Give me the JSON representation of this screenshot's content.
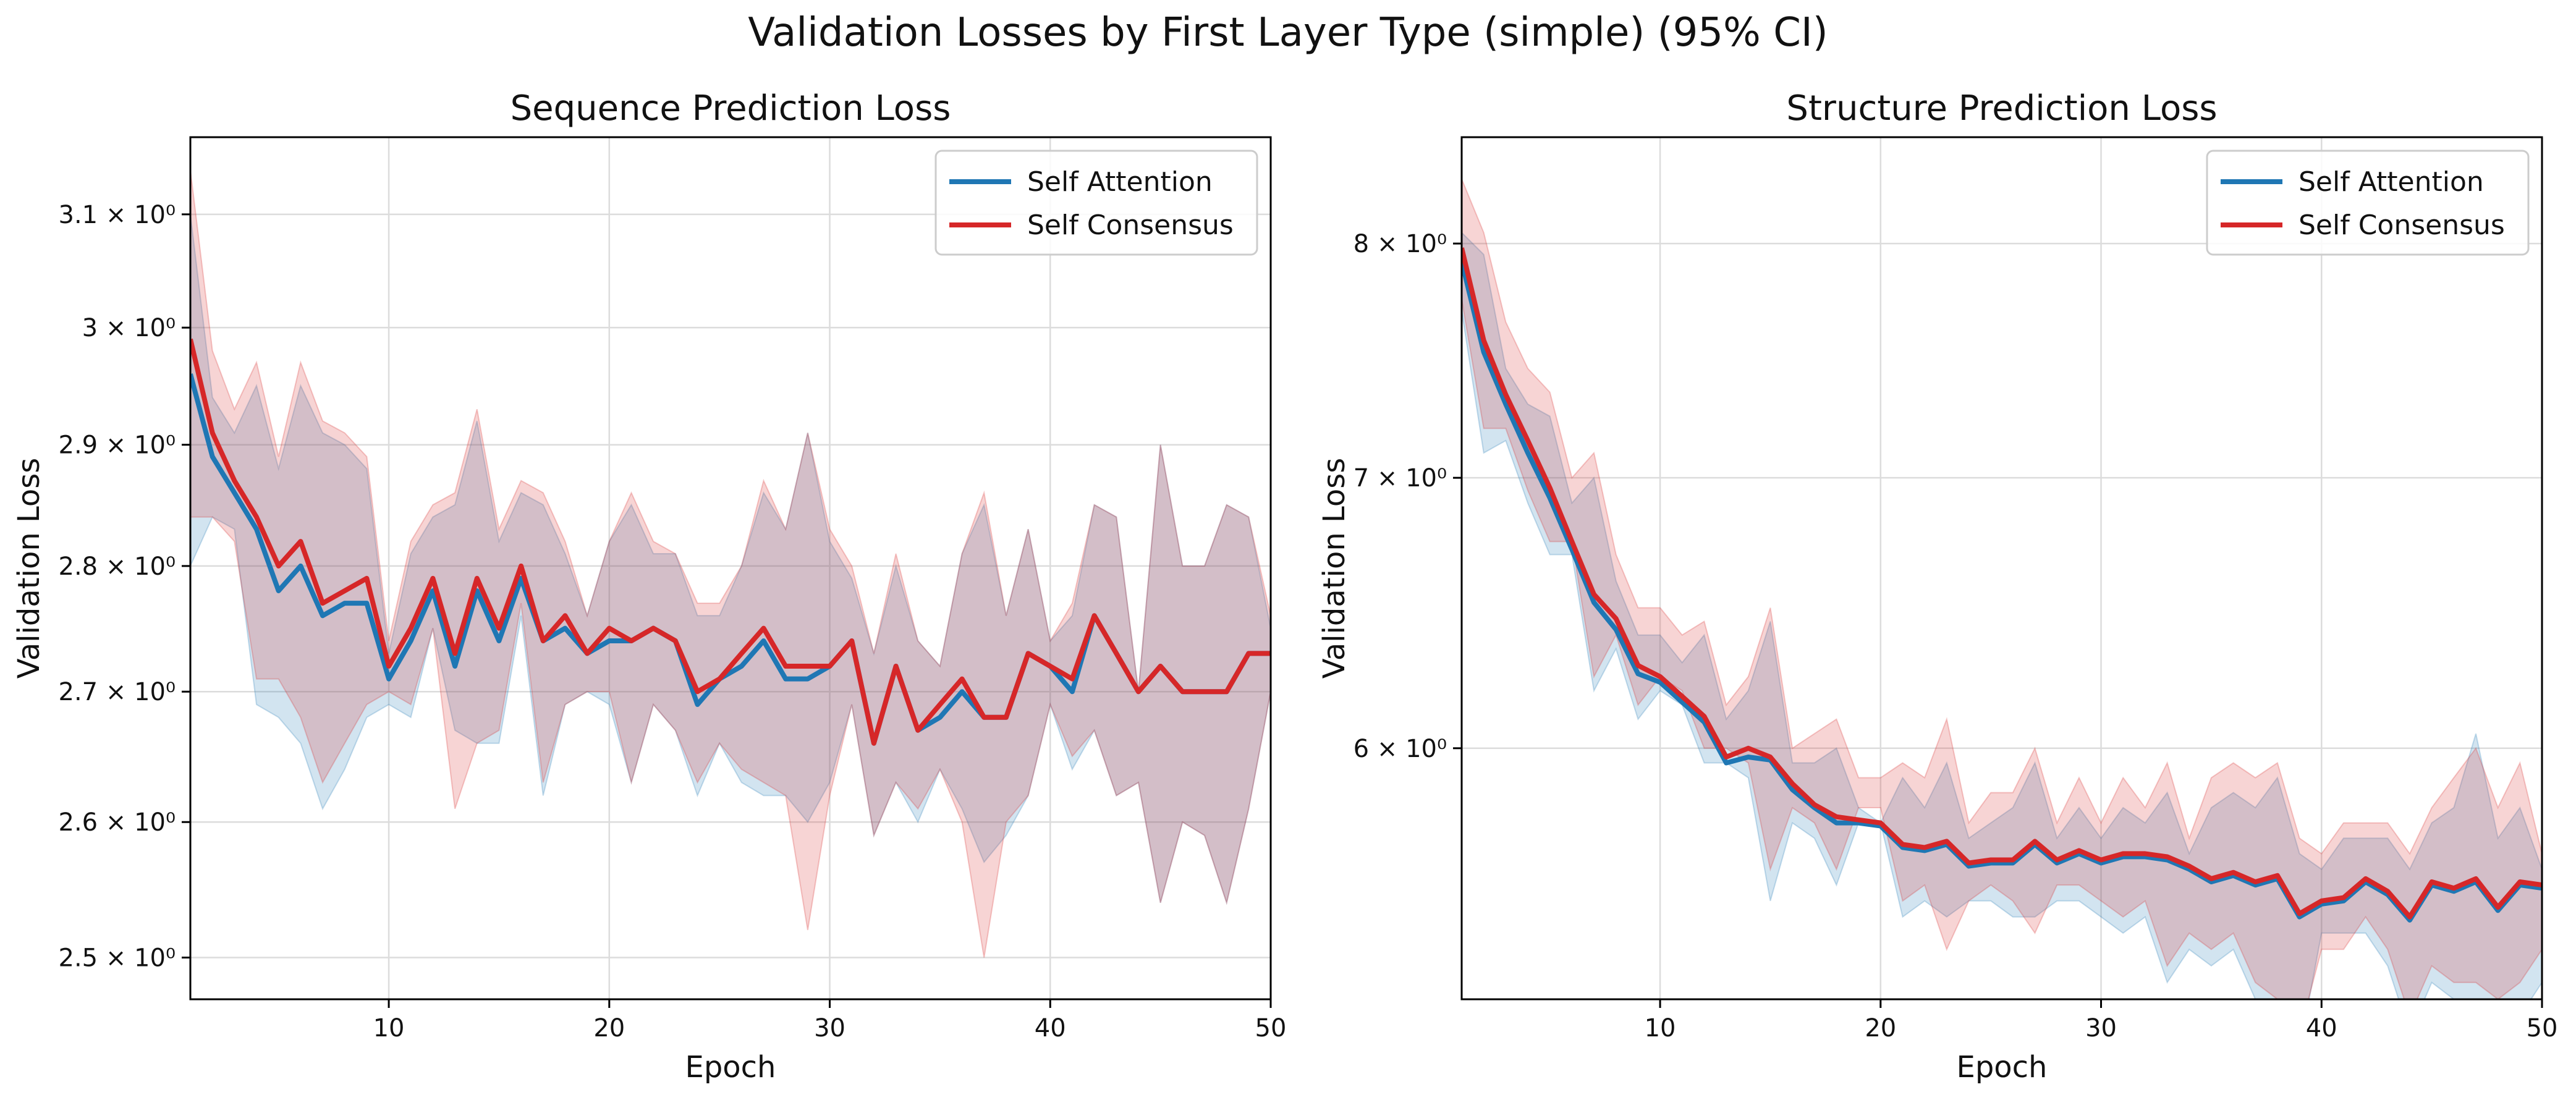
{
  "suptitle": "Validation Losses by First Layer Type (simple) (95% CI)",
  "colors": {
    "self_attention": "#1f77b4",
    "self_consensus": "#d62728",
    "grid": "#dcdcdc",
    "axes": "#000000"
  },
  "chart_data": [
    {
      "type": "line",
      "title": "Sequence Prediction Loss",
      "xlabel": "Epoch",
      "ylabel": "Validation Loss",
      "yscale": "log",
      "xlim": [
        1,
        50
      ],
      "ylim": [
        2.47,
        3.17
      ],
      "xticks": [
        10,
        20,
        30,
        40,
        50
      ],
      "yticks": [
        2.5,
        2.6,
        2.7,
        2.8,
        2.9,
        3.0,
        3.1
      ],
      "ytick_labels": [
        "2.5 × 10⁰",
        "2.6 × 10⁰",
        "2.7 × 10⁰",
        "2.8 × 10⁰",
        "2.9 × 10⁰",
        "3 × 10⁰",
        "3.1 × 10⁰"
      ],
      "grid": true,
      "legend": "top-right",
      "x": [
        1,
        2,
        3,
        4,
        5,
        6,
        7,
        8,
        9,
        10,
        11,
        12,
        13,
        14,
        15,
        16,
        17,
        18,
        19,
        20,
        21,
        22,
        23,
        24,
        25,
        26,
        27,
        28,
        29,
        30,
        31,
        32,
        33,
        34,
        35,
        36,
        37,
        38,
        39,
        40,
        41,
        42,
        43,
        44,
        45,
        46,
        47,
        48,
        49,
        50
      ],
      "series": [
        {
          "name": "Self Attention",
          "color_key": "self_attention",
          "values": [
            2.96,
            2.89,
            2.86,
            2.83,
            2.78,
            2.8,
            2.76,
            2.77,
            2.77,
            2.71,
            2.74,
            2.78,
            2.72,
            2.78,
            2.74,
            2.79,
            2.74,
            2.75,
            2.73,
            2.74,
            2.74,
            2.75,
            2.74,
            2.69,
            2.71,
            2.72,
            2.74,
            2.71,
            2.71,
            2.72,
            2.74,
            2.66,
            2.72,
            2.67,
            2.68,
            2.7,
            2.68,
            2.68,
            2.73,
            2.72,
            2.7,
            2.76,
            2.73,
            2.7,
            2.72,
            2.7,
            2.7,
            2.7,
            2.73,
            2.73
          ],
          "ci_lower": [
            2.8,
            2.84,
            2.83,
            2.69,
            2.68,
            2.66,
            2.61,
            2.64,
            2.68,
            2.69,
            2.68,
            2.75,
            2.67,
            2.66,
            2.66,
            2.76,
            2.62,
            2.69,
            2.7,
            2.69,
            2.63,
            2.69,
            2.67,
            2.62,
            2.66,
            2.63,
            2.62,
            2.62,
            2.6,
            2.63,
            2.69,
            2.59,
            2.63,
            2.6,
            2.64,
            2.61,
            2.57,
            2.59,
            2.62,
            2.69,
            2.64,
            2.67,
            2.62,
            2.63,
            2.54,
            2.6,
            2.59,
            2.54,
            2.61,
            2.7
          ],
          "ci_upper": [
            3.1,
            2.94,
            2.91,
            2.95,
            2.88,
            2.95,
            2.91,
            2.9,
            2.88,
            2.73,
            2.81,
            2.84,
            2.85,
            2.92,
            2.82,
            2.86,
            2.85,
            2.81,
            2.76,
            2.82,
            2.85,
            2.81,
            2.81,
            2.76,
            2.76,
            2.8,
            2.86,
            2.83,
            2.91,
            2.82,
            2.79,
            2.73,
            2.8,
            2.74,
            2.72,
            2.81,
            2.85,
            2.76,
            2.83,
            2.74,
            2.76,
            2.85,
            2.84,
            2.7,
            2.9,
            2.8,
            2.8,
            2.85,
            2.84,
            2.75
          ]
        },
        {
          "name": "Self Consensus",
          "color_key": "self_consensus",
          "values": [
            2.99,
            2.91,
            2.87,
            2.84,
            2.8,
            2.82,
            2.77,
            2.78,
            2.79,
            2.72,
            2.75,
            2.79,
            2.73,
            2.79,
            2.75,
            2.8,
            2.74,
            2.76,
            2.73,
            2.75,
            2.74,
            2.75,
            2.74,
            2.7,
            2.71,
            2.73,
            2.75,
            2.72,
            2.72,
            2.72,
            2.74,
            2.66,
            2.72,
            2.67,
            2.69,
            2.71,
            2.68,
            2.68,
            2.73,
            2.72,
            2.71,
            2.76,
            2.73,
            2.7,
            2.72,
            2.7,
            2.7,
            2.7,
            2.73,
            2.73
          ],
          "ci_lower": [
            2.84,
            2.84,
            2.82,
            2.71,
            2.71,
            2.68,
            2.63,
            2.66,
            2.69,
            2.7,
            2.69,
            2.75,
            2.61,
            2.66,
            2.67,
            2.77,
            2.63,
            2.69,
            2.7,
            2.7,
            2.63,
            2.69,
            2.67,
            2.63,
            2.66,
            2.64,
            2.63,
            2.62,
            2.52,
            2.62,
            2.69,
            2.59,
            2.63,
            2.61,
            2.64,
            2.6,
            2.5,
            2.6,
            2.62,
            2.69,
            2.65,
            2.67,
            2.62,
            2.63,
            2.54,
            2.6,
            2.59,
            2.54,
            2.61,
            2.7
          ],
          "ci_upper": [
            3.14,
            2.98,
            2.93,
            2.97,
            2.89,
            2.97,
            2.92,
            2.91,
            2.89,
            2.74,
            2.82,
            2.85,
            2.86,
            2.93,
            2.83,
            2.87,
            2.86,
            2.82,
            2.76,
            2.82,
            2.86,
            2.82,
            2.81,
            2.77,
            2.77,
            2.8,
            2.87,
            2.83,
            2.91,
            2.83,
            2.8,
            2.73,
            2.81,
            2.74,
            2.72,
            2.81,
            2.86,
            2.76,
            2.83,
            2.74,
            2.77,
            2.85,
            2.84,
            2.7,
            2.9,
            2.8,
            2.8,
            2.85,
            2.84,
            2.76
          ]
        }
      ]
    },
    {
      "type": "line",
      "title": "Structure Prediction Loss",
      "xlabel": "Epoch",
      "ylabel": "Validation Loss",
      "yscale": "log",
      "xlim": [
        1,
        50
      ],
      "ylim": [
        5.2,
        8.5
      ],
      "xticks": [
        10,
        20,
        30,
        40,
        50
      ],
      "yticks": [
        6,
        7,
        8
      ],
      "ytick_labels": [
        "6 × 10⁰",
        "7 × 10⁰",
        "8 × 10⁰"
      ],
      "grid": true,
      "legend": "top-right",
      "x": [
        1,
        2,
        3,
        4,
        5,
        6,
        7,
        8,
        9,
        10,
        11,
        12,
        13,
        14,
        15,
        16,
        17,
        18,
        19,
        20,
        21,
        22,
        23,
        24,
        25,
        26,
        27,
        28,
        29,
        30,
        31,
        32,
        33,
        34,
        35,
        36,
        37,
        38,
        39,
        40,
        41,
        42,
        43,
        44,
        45,
        46,
        47,
        48,
        49,
        50
      ],
      "series": [
        {
          "name": "Self Attention",
          "color_key": "self_attention",
          "values": [
            7.92,
            7.52,
            7.3,
            7.1,
            6.92,
            6.72,
            6.52,
            6.42,
            6.26,
            6.23,
            6.16,
            6.09,
            5.95,
            5.97,
            5.96,
            5.86,
            5.8,
            5.75,
            5.75,
            5.74,
            5.67,
            5.66,
            5.68,
            5.61,
            5.62,
            5.62,
            5.68,
            5.62,
            5.65,
            5.62,
            5.64,
            5.64,
            5.63,
            5.6,
            5.56,
            5.58,
            5.55,
            5.57,
            5.45,
            5.49,
            5.5,
            5.56,
            5.52,
            5.44,
            5.55,
            5.53,
            5.56,
            5.47,
            5.55,
            5.54
          ],
          "ci_lower": [
            7.7,
            7.1,
            7.15,
            6.9,
            6.7,
            6.7,
            6.2,
            6.35,
            6.1,
            6.2,
            6.15,
            5.95,
            5.95,
            5.9,
            5.5,
            5.75,
            5.7,
            5.55,
            5.75,
            5.75,
            5.45,
            5.5,
            5.45,
            5.5,
            5.5,
            5.45,
            5.45,
            5.5,
            5.5,
            5.45,
            5.4,
            5.45,
            5.25,
            5.35,
            5.3,
            5.35,
            5.2,
            5.15,
            5.05,
            5.4,
            5.4,
            5.4,
            5.3,
            5.1,
            5.25,
            5.2,
            5.1,
            5.15,
            5.15,
            5.25
          ],
          "ci_upper": [
            8.05,
            7.95,
            7.45,
            7.3,
            7.25,
            6.9,
            7.0,
            6.6,
            6.4,
            6.4,
            6.3,
            6.4,
            6.1,
            6.2,
            6.45,
            5.95,
            5.95,
            6.0,
            5.8,
            5.75,
            5.9,
            5.8,
            5.95,
            5.7,
            5.75,
            5.8,
            5.95,
            5.7,
            5.8,
            5.7,
            5.8,
            5.75,
            5.85,
            5.65,
            5.8,
            5.85,
            5.8,
            5.9,
            5.65,
            5.6,
            5.7,
            5.7,
            5.7,
            5.6,
            5.75,
            5.8,
            6.05,
            5.7,
            5.8,
            5.6
          ]
        },
        {
          "name": "Self Consensus",
          "color_key": "self_consensus",
          "values": [
            7.98,
            7.57,
            7.34,
            7.15,
            6.96,
            6.75,
            6.55,
            6.46,
            6.29,
            6.25,
            6.18,
            6.11,
            5.97,
            6.0,
            5.97,
            5.88,
            5.81,
            5.77,
            5.76,
            5.75,
            5.68,
            5.67,
            5.69,
            5.62,
            5.63,
            5.63,
            5.69,
            5.63,
            5.66,
            5.63,
            5.65,
            5.65,
            5.64,
            5.61,
            5.57,
            5.59,
            5.56,
            5.58,
            5.46,
            5.5,
            5.51,
            5.57,
            5.53,
            5.45,
            5.56,
            5.54,
            5.57,
            5.48,
            5.56,
            5.55
          ],
          "ci_lower": [
            7.75,
            7.2,
            7.2,
            6.95,
            6.75,
            6.75,
            6.25,
            6.4,
            6.15,
            6.25,
            6.2,
            6.0,
            6.0,
            5.95,
            5.6,
            5.8,
            5.75,
            5.6,
            5.8,
            5.8,
            5.5,
            5.55,
            5.35,
            5.5,
            5.55,
            5.5,
            5.4,
            5.55,
            5.55,
            5.5,
            5.45,
            5.5,
            5.3,
            5.4,
            5.35,
            5.4,
            5.25,
            5.2,
            5.1,
            5.35,
            5.35,
            5.45,
            5.35,
            5.15,
            5.3,
            5.25,
            5.25,
            5.2,
            5.25,
            5.35
          ],
          "ci_upper": [
            8.3,
            8.05,
            7.65,
            7.45,
            7.35,
            7.0,
            7.1,
            6.7,
            6.5,
            6.5,
            6.4,
            6.45,
            6.15,
            6.25,
            6.5,
            6.0,
            6.05,
            6.1,
            5.9,
            5.9,
            5.95,
            5.9,
            6.1,
            5.75,
            5.85,
            5.85,
            6.0,
            5.75,
            5.9,
            5.75,
            5.9,
            5.8,
            5.95,
            5.7,
            5.9,
            5.95,
            5.9,
            5.95,
            5.7,
            5.65,
            5.75,
            5.75,
            5.75,
            5.65,
            5.8,
            5.9,
            6.0,
            5.8,
            5.95,
            5.65
          ]
        }
      ]
    }
  ]
}
